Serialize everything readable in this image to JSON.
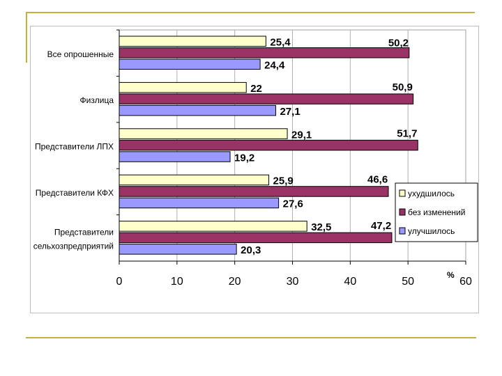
{
  "chart_data": {
    "type": "bar",
    "orientation": "horizontal",
    "categories": [
      [
        "Все опрошенные"
      ],
      [
        "Физлица"
      ],
      [
        "Представители ЛПХ"
      ],
      [
        "Представители КФХ"
      ],
      [
        "Представители",
        "сельхозпредприятий"
      ]
    ],
    "series": [
      {
        "name": "ухудшилось",
        "color": "#ffffcc",
        "values": [
          25.4,
          22,
          29.1,
          25.9,
          32.5
        ],
        "labels": [
          "25,4",
          "22",
          "29,1",
          "25,9",
          "32,5"
        ]
      },
      {
        "name": "без изменений",
        "color": "#993366",
        "values": [
          50.2,
          50.9,
          51.7,
          46.6,
          47.2
        ],
        "labels": [
          "50,2",
          "50,9",
          "51,7",
          "46,6",
          "47,2"
        ]
      },
      {
        "name": "улучшилось",
        "color": "#9999ff",
        "values": [
          24.4,
          27.1,
          19.2,
          27.6,
          20.3
        ],
        "labels": [
          "24,4",
          "27,1",
          "19,2",
          "27,6",
          "20,3"
        ]
      }
    ],
    "xlim": [
      0,
      60
    ],
    "xticks": [
      "0",
      "10",
      "20",
      "30",
      "40",
      "50",
      "60"
    ],
    "xlabel": "%",
    "legend": "right"
  }
}
